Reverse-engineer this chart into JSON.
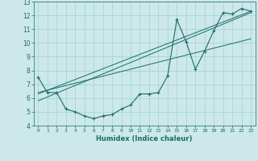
{
  "xlabel": "Humidex (Indice chaleur)",
  "ylabel": "",
  "xlim": [
    -0.5,
    23.5
  ],
  "ylim": [
    4,
    13
  ],
  "xticks": [
    0,
    1,
    2,
    3,
    4,
    5,
    6,
    7,
    8,
    9,
    10,
    11,
    12,
    13,
    14,
    15,
    16,
    17,
    18,
    19,
    20,
    21,
    22,
    23
  ],
  "yticks": [
    4,
    5,
    6,
    7,
    8,
    9,
    10,
    11,
    12,
    13
  ],
  "bg_color": "#cce8e8",
  "grid_color": "#aad4d4",
  "line_color": "#1a6b6b",
  "series1": {
    "x": [
      0,
      1,
      2,
      3,
      4,
      5,
      6,
      7,
      8,
      9,
      10,
      11,
      12,
      13,
      14,
      15,
      16,
      17,
      18,
      19,
      20,
      21,
      22,
      23
    ],
    "y": [
      7.5,
      6.4,
      6.4,
      5.2,
      5.0,
      4.7,
      4.5,
      4.7,
      4.8,
      5.2,
      5.5,
      6.3,
      6.3,
      6.4,
      7.6,
      11.7,
      10.1,
      8.1,
      9.4,
      10.9,
      12.2,
      12.1,
      12.5,
      12.3
    ]
  },
  "line_trend1": {
    "x": [
      0,
      23
    ],
    "y": [
      6.3,
      12.3
    ]
  },
  "line_trend2": {
    "x": [
      0,
      23
    ],
    "y": [
      5.8,
      12.2
    ]
  },
  "line_trend3": {
    "x": [
      0,
      23
    ],
    "y": [
      6.4,
      10.3
    ]
  }
}
